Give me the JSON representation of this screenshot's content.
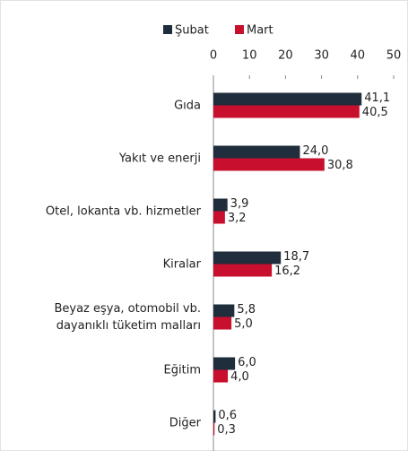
{
  "chart_data": {
    "type": "hbar",
    "categories": [
      "Gıda",
      "Yakıt ve enerji",
      "Otel, lokanta vb. hizmetler",
      "Kiralar",
      "Beyaz eşya, otomobil vb.\ndayanıklı tüketim malları",
      "Eğitim",
      "Diğer"
    ],
    "series": [
      {
        "name": "Şubat",
        "color": "#1f2d3d",
        "values": [
          41.1,
          24.0,
          3.9,
          18.7,
          5.8,
          6.0,
          0.6
        ],
        "value_labels": [
          "41,1",
          "24,0",
          "3,9",
          "18,7",
          "5,8",
          "6,0",
          "0,6"
        ]
      },
      {
        "name": "Mart",
        "color": "#c8102e",
        "values": [
          40.5,
          30.8,
          3.2,
          16.2,
          5.0,
          4.0,
          0.3
        ],
        "value_labels": [
          "40,5",
          "30,8",
          "3,2",
          "16,2",
          "5,0",
          "4,0",
          "0,3"
        ]
      }
    ],
    "xlim": [
      0,
      50
    ],
    "xticks": [
      0,
      10,
      20,
      30,
      40,
      50
    ],
    "legend": "top"
  }
}
